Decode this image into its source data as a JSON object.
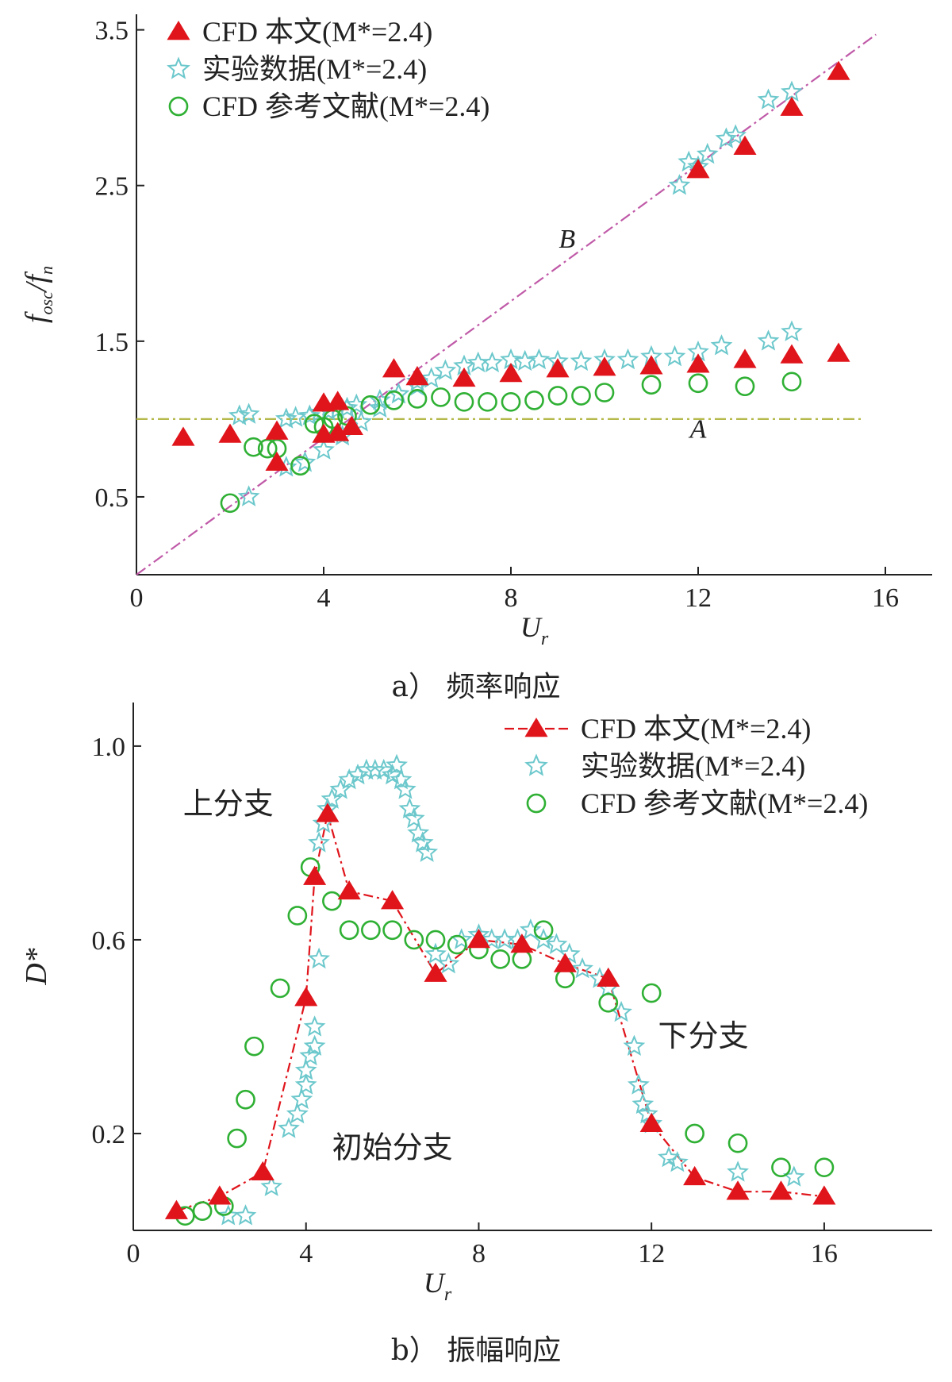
{
  "colors": {
    "cfd": "#e0141b",
    "exp": "#6cc8cc",
    "ref": "#2fb034",
    "lineA": "#b5b84a",
    "lineB": "#c05aa8",
    "cfd_line": "#e0141b",
    "axis": "#222222"
  },
  "chart_data": [
    {
      "type": "scatter",
      "panel_caption": "a）  频率响应",
      "xlabel_main": "U",
      "xlabel_sub": "r",
      "ylabel_main": "f",
      "ylabel_sub": "osc",
      "ylabel_mid": "/f",
      "ylabel_sub2": "n",
      "xlim": [
        0,
        17
      ],
      "ylim": [
        0.0,
        3.6
      ],
      "xticks": [
        0,
        4,
        8,
        12,
        16
      ],
      "yticks": [
        0.5,
        1.5,
        2.5,
        3.5
      ],
      "ytick_labels": [
        "0.5",
        "1.5",
        "2.5",
        "3.5"
      ],
      "grid": false,
      "legend_position": "top-left",
      "annotations": [
        {
          "text": "A",
          "x": 12.0,
          "y": 0.88
        },
        {
          "text": "B",
          "x": 9.2,
          "y": 2.1
        }
      ],
      "lines": [
        {
          "id": "A",
          "x": [
            0,
            15.5
          ],
          "y": [
            1.0,
            1.0
          ]
        },
        {
          "id": "B",
          "x": [
            0,
            15.8
          ],
          "y": [
            0.0,
            3.47
          ]
        }
      ],
      "series": [
        {
          "name": "CFD 本文(M*=2.4)",
          "marker": "triangle",
          "x": [
            1,
            2,
            3,
            3,
            4,
            4,
            4.3,
            4.3,
            4.6,
            5.5,
            6,
            7,
            8,
            9,
            10,
            11,
            12,
            13,
            14,
            15,
            12,
            13,
            14,
            15
          ],
          "y": [
            0.88,
            0.9,
            0.92,
            0.72,
            1.1,
            0.9,
            1.11,
            0.91,
            0.95,
            1.32,
            1.27,
            1.26,
            1.29,
            1.32,
            1.33,
            1.34,
            1.35,
            1.38,
            1.41,
            1.42,
            2.6,
            2.75,
            3.0,
            3.23
          ]
        },
        {
          "name": "实验数据(M*=2.4)",
          "marker": "star",
          "x": [
            2.2,
            2.4,
            3.2,
            3.4,
            3.7,
            3.9,
            4.1,
            4.3,
            4.5,
            4.7,
            5.2,
            5.6,
            6.0,
            6.3,
            6.6,
            7.0,
            7.3,
            7.6,
            8.0,
            8.3,
            8.6,
            9.0,
            9.5,
            10.0,
            10.5,
            11.0,
            11.5,
            12.0,
            12.5,
            13.5,
            14.0,
            2.4,
            3.2,
            3.6,
            4.0,
            4.4,
            4.8,
            5.2,
            5.6,
            6.0,
            11.6,
            11.8,
            12.0,
            12.2,
            12.6,
            12.8,
            13.5,
            14.0
          ],
          "y": [
            1.02,
            1.03,
            1.0,
            1.01,
            1.02,
            1.04,
            1.05,
            1.06,
            1.07,
            1.09,
            1.12,
            1.16,
            1.21,
            1.26,
            1.31,
            1.34,
            1.36,
            1.36,
            1.38,
            1.37,
            1.38,
            1.37,
            1.37,
            1.38,
            1.38,
            1.4,
            1.4,
            1.43,
            1.47,
            1.5,
            1.56,
            0.5,
            0.69,
            0.72,
            0.8,
            0.89,
            0.98,
            1.07,
            1.16,
            1.24,
            2.5,
            2.65,
            2.62,
            2.7,
            2.8,
            2.82,
            3.05,
            3.1
          ]
        },
        {
          "name": "CFD 参考文献(M*=2.4)",
          "marker": "circle",
          "x": [
            2,
            2.5,
            2.8,
            3.0,
            3.5,
            3.8,
            4.0,
            4.2,
            4.5,
            5.0,
            5.5,
            6.0,
            6.5,
            7.0,
            7.5,
            8.0,
            8.5,
            9.0,
            9.5,
            10.0,
            11.0,
            12.0,
            13.0,
            14.0
          ],
          "y": [
            0.46,
            0.82,
            0.81,
            0.81,
            0.7,
            0.97,
            0.95,
            1.0,
            1.02,
            1.09,
            1.12,
            1.13,
            1.14,
            1.11,
            1.11,
            1.11,
            1.12,
            1.15,
            1.15,
            1.17,
            1.22,
            1.23,
            1.21,
            1.24
          ]
        }
      ]
    },
    {
      "type": "scatter",
      "panel_caption": "b）  振幅响应",
      "xlabel_main": "U",
      "xlabel_sub": "r",
      "ylabel_main": "D*",
      "xlim": [
        0,
        18.5
      ],
      "ylim": [
        0.0,
        1.09
      ],
      "xticks": [
        0,
        4,
        8,
        12,
        16
      ],
      "yticks": [
        0.2,
        0.6,
        1.0
      ],
      "ytick_labels": [
        "0.2",
        "0.6",
        "1.0"
      ],
      "grid": false,
      "legend_position": "top-right",
      "annotations": [
        {
          "text": "上分支",
          "x": 2.2,
          "y": 0.86
        },
        {
          "text": "下分支",
          "x": 13.2,
          "y": 0.38
        },
        {
          "text": "初始分支",
          "x": 6.0,
          "y": 0.15
        }
      ],
      "series": [
        {
          "name": "CFD 本文(M*=2.4)",
          "marker": "triangle",
          "line": "dash-dot",
          "x": [
            1,
            2,
            3,
            4,
            4.2,
            4.5,
            5,
            6,
            7,
            8,
            9,
            10,
            11,
            12,
            13,
            14,
            15,
            16
          ],
          "y": [
            0.04,
            0.07,
            0.12,
            0.48,
            0.73,
            0.86,
            0.7,
            0.68,
            0.53,
            0.6,
            0.59,
            0.55,
            0.52,
            0.22,
            0.11,
            0.08,
            0.08,
            0.07
          ]
        },
        {
          "name": "实验数据(M*=2.4)",
          "marker": "star",
          "x": [
            2.2,
            2.6,
            3.2,
            3.6,
            3.8,
            3.9,
            4.0,
            4.0,
            4.1,
            4.2,
            4.2,
            4.3,
            4.3,
            4.4,
            4.5,
            4.6,
            4.8,
            5.0,
            5.2,
            5.4,
            5.6,
            5.8,
            6.0,
            6.1,
            6.2,
            6.3,
            6.4,
            6.5,
            6.6,
            6.7,
            6.8,
            7.0,
            7.3,
            7.6,
            8.0,
            8.3,
            8.6,
            8.9,
            9.2,
            9.5,
            9.8,
            10.1,
            10.4,
            10.8,
            11.0,
            11.3,
            11.6,
            11.7,
            11.8,
            11.9,
            12.0,
            12.4,
            12.6,
            14.0,
            15.3
          ],
          "y": [
            0.03,
            0.03,
            0.09,
            0.21,
            0.24,
            0.27,
            0.3,
            0.33,
            0.36,
            0.38,
            0.42,
            0.56,
            0.8,
            0.84,
            0.87,
            0.89,
            0.91,
            0.93,
            0.94,
            0.95,
            0.95,
            0.95,
            0.94,
            0.96,
            0.93,
            0.91,
            0.87,
            0.85,
            0.82,
            0.8,
            0.78,
            0.57,
            0.55,
            0.6,
            0.61,
            0.6,
            0.6,
            0.6,
            0.62,
            0.6,
            0.59,
            0.57,
            0.54,
            0.52,
            0.5,
            0.45,
            0.38,
            0.3,
            0.26,
            0.24,
            0.22,
            0.15,
            0.14,
            0.12,
            0.11
          ]
        },
        {
          "name": "CFD 参考文献(M*=2.4)",
          "marker": "circle",
          "x": [
            1.2,
            1.6,
            2.1,
            2.4,
            2.6,
            2.8,
            3.4,
            3.8,
            4.1,
            4.6,
            5.0,
            5.5,
            6.0,
            6.5,
            7.0,
            7.5,
            8.0,
            8.5,
            9.0,
            9.5,
            10.0,
            11.0,
            12.0,
            13.0,
            14.0,
            15.0,
            16.0
          ],
          "y": [
            0.03,
            0.04,
            0.05,
            0.19,
            0.27,
            0.38,
            0.5,
            0.65,
            0.75,
            0.68,
            0.62,
            0.62,
            0.62,
            0.6,
            0.6,
            0.59,
            0.58,
            0.56,
            0.56,
            0.62,
            0.52,
            0.47,
            0.49,
            0.2,
            0.18,
            0.13,
            0.13
          ]
        }
      ]
    }
  ]
}
